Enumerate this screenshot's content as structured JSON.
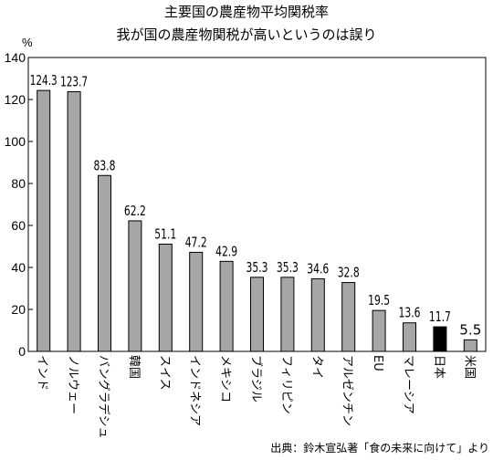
{
  "chart_data": {
    "type": "bar",
    "title": "主要国の農産物平均関税率",
    "subtitle": "我が国の農産物関税が高いというのは誤り",
    "ylabel": "%",
    "ylim": [
      0,
      140
    ],
    "yticks": [
      0,
      20,
      40,
      60,
      80,
      100,
      120,
      140
    ],
    "categories": [
      "インド",
      "ノルウェー",
      "バングラデシュ",
      "韓国",
      "スイス",
      "インドネシア",
      "メキシコ",
      "ブラジル",
      "フィリピン",
      "タイ",
      "アルゼンチン",
      "EU",
      "マレーシア",
      "日本",
      "米国"
    ],
    "values": [
      124.3,
      123.7,
      83.8,
      62.2,
      51.1,
      47.2,
      42.9,
      35.3,
      35.3,
      34.6,
      32.8,
      19.5,
      13.6,
      11.7,
      5.5
    ],
    "value_labels": [
      "124.3",
      "123.7",
      "83.8",
      "62.2",
      "51.1",
      "47.2",
      "42.9",
      "35.3",
      "35.3",
      "34.6",
      "32.8",
      "19.5",
      "13.6",
      "11.7",
      "5.5"
    ],
    "highlight_index": 13,
    "bar_color": "#a6a6a6",
    "highlight_color": "#000000",
    "grid": false,
    "source": "出典：鈴木宣弘著「食の未来に向けて」より"
  }
}
